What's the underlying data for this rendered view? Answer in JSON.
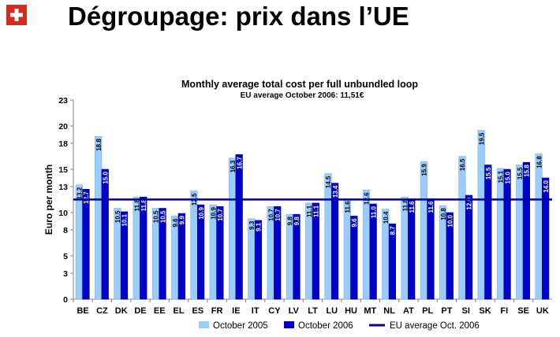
{
  "slide_title": "Dégroupage: prix dans l’UE",
  "chart_data": {
    "type": "bar",
    "title": "Monthly average total cost per full unbundled loop",
    "subtitle": "EU average October 2006:   11,51€",
    "ylabel": "Euro per month",
    "xlabel": "",
    "ylim": [
      0,
      23
    ],
    "yticks": [
      0,
      3,
      5,
      8,
      10,
      13,
      15,
      18,
      20,
      23
    ],
    "grid": false,
    "legend_position": "bottom",
    "categories": [
      "BE",
      "CZ",
      "DK",
      "DE",
      "EE",
      "EL",
      "ES",
      "FR",
      "IE",
      "IT",
      "CY",
      "LV",
      "LT",
      "LU",
      "HU",
      "MT",
      "NL",
      "AT",
      "PL",
      "PT",
      "SI",
      "SK",
      "FI",
      "SE",
      "UK"
    ],
    "series": [
      {
        "name": "October 2005",
        "color": "#99ccff",
        "values": [
          13.2,
          18.8,
          10.5,
          11.8,
          10.5,
          9.6,
          12.5,
          10.9,
          16.3,
          9.3,
          10.7,
          9.8,
          11.1,
          14.5,
          11.6,
          12.6,
          10.4,
          11.8,
          15.9,
          10.8,
          16.5,
          19.5,
          15.1,
          15.5,
          16.8
        ],
        "labels": [
          "13.2",
          "18.8",
          "10.5",
          "11.8",
          "10.5",
          "9.6",
          "12.5",
          "10.9",
          "16.3",
          "9.3",
          "10.7",
          "9.8",
          "11.1",
          "14.5",
          "11.6",
          "12.6",
          "10.4",
          "11.8",
          "15.9",
          "10.8",
          "16.5",
          "19.5",
          "15.1",
          "15.5",
          "16.8"
        ]
      },
      {
        "name": "October 2006",
        "color": "#0000cc",
        "values": [
          12.7,
          15.0,
          10.1,
          11.8,
          10.5,
          9.9,
          10.9,
          10.7,
          16.7,
          9.1,
          10.7,
          9.8,
          11.1,
          13.4,
          9.6,
          11.0,
          8.7,
          11.6,
          11.6,
          10.0,
          12.0,
          15.5,
          15.0,
          15.8,
          14.0
        ],
        "labels": [
          "12.7",
          "15.0",
          "10.1",
          "11.8",
          "10.5",
          "9.9",
          "10.9",
          "10.7",
          "16.7",
          "9.1",
          "10.7",
          "9.8",
          "11.1",
          "13.4",
          "9.6",
          "11.0",
          "8.7",
          "11.6",
          "11.6",
          "10.0",
          "12.0",
          "15.5",
          "15.0",
          "15.8",
          "14.0"
        ]
      }
    ],
    "reference_line": {
      "name": "EU average Oct. 2006",
      "value": 11.51,
      "color": "#000099"
    }
  }
}
